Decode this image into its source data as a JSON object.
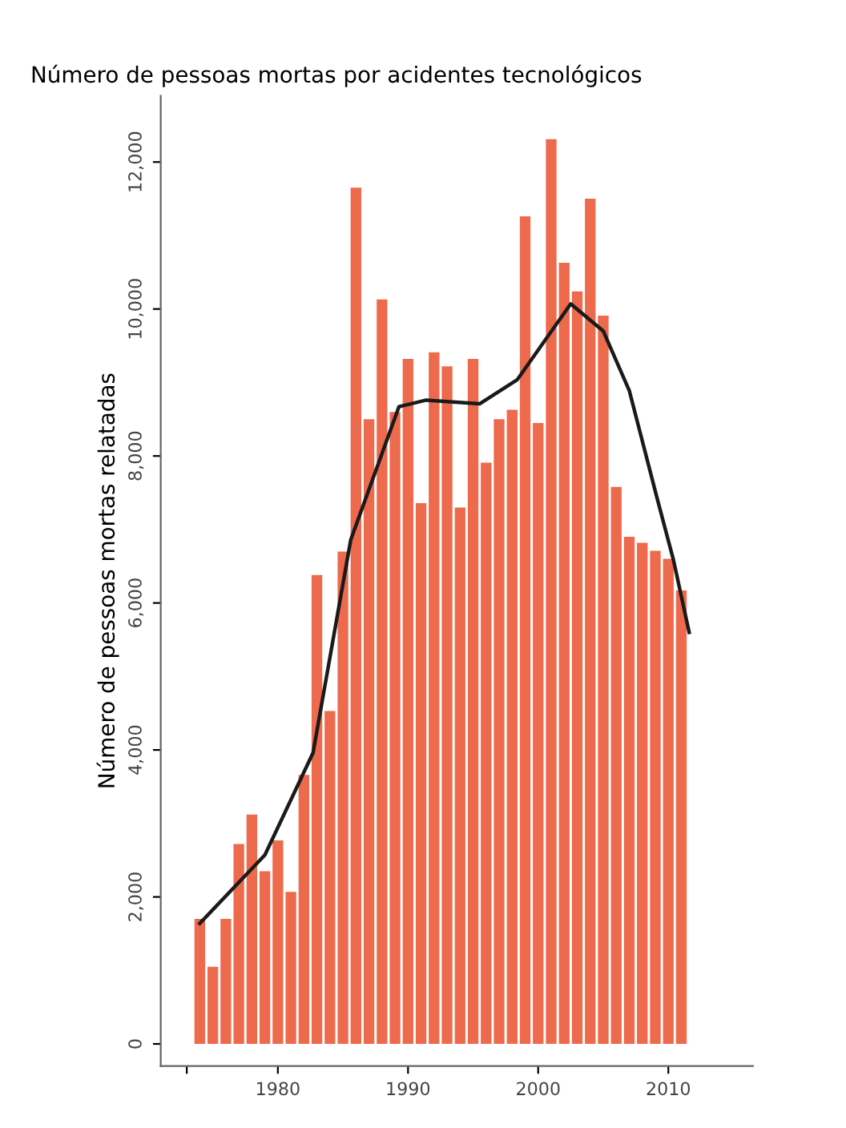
{
  "chart_data": {
    "type": "bar",
    "title": "Número de pessoas mortas por acidentes tecnológicos",
    "ylabel": "Número de pessoas mortas relatadas",
    "x": [
      1974,
      1975,
      1976,
      1977,
      1978,
      1979,
      1980,
      1981,
      1982,
      1983,
      1984,
      1985,
      1986,
      1987,
      1988,
      1989,
      1990,
      1991,
      1992,
      1993,
      1994,
      1995,
      1996,
      1997,
      1998,
      1999,
      2000,
      2001,
      2002,
      2003,
      2004,
      2005,
      2006,
      2007,
      2008,
      2009,
      2010,
      2011
    ],
    "series": [
      {
        "color": "#ee6a4d",
        "values": [
          1700,
          1050,
          1700,
          2720,
          3120,
          2350,
          2770,
          2070,
          3660,
          6380,
          4530,
          6700,
          11650,
          8500,
          10130,
          8600,
          9320,
          7360,
          9410,
          9220,
          7300,
          9320,
          7910,
          8500,
          8630,
          11260,
          8450,
          12310,
          10630,
          10240,
          11500,
          9910,
          7580,
          6900,
          6820,
          6710,
          6600,
          6170
        ]
      },
      {
        "type": "line",
        "color": "#1a1a1a",
        "x": [
          1974,
          1979,
          1982.7,
          1985.6,
          1989.3,
          1991.4,
          1995.5,
          1998.4,
          2002.5,
          2005,
          2007,
          2009.1,
          2010.4,
          2011.6
        ],
        "values": [
          1640,
          2570,
          3960,
          6860,
          8670,
          8760,
          8710,
          9040,
          10070,
          9700,
          8890,
          7450,
          6580,
          5600
        ]
      }
    ],
    "xlim": [
      1971,
      2016.5
    ],
    "xticks": [
      {
        "value": 1973,
        "label": null
      },
      1980,
      1990,
      2000,
      2010
    ],
    "ylim": [
      -300,
      12900
    ],
    "yticks": [
      0,
      {
        "value": 2000,
        "label": "2,000"
      },
      {
        "value": 4000,
        "label": "4,000"
      },
      {
        "value": 6000,
        "label": "6,000"
      },
      {
        "value": 8000,
        "label": "8,000"
      },
      {
        "value": 10000,
        "label": "10,000"
      },
      {
        "value": 12000,
        "label": "12,000"
      }
    ],
    "grid": false,
    "legend": false
  }
}
